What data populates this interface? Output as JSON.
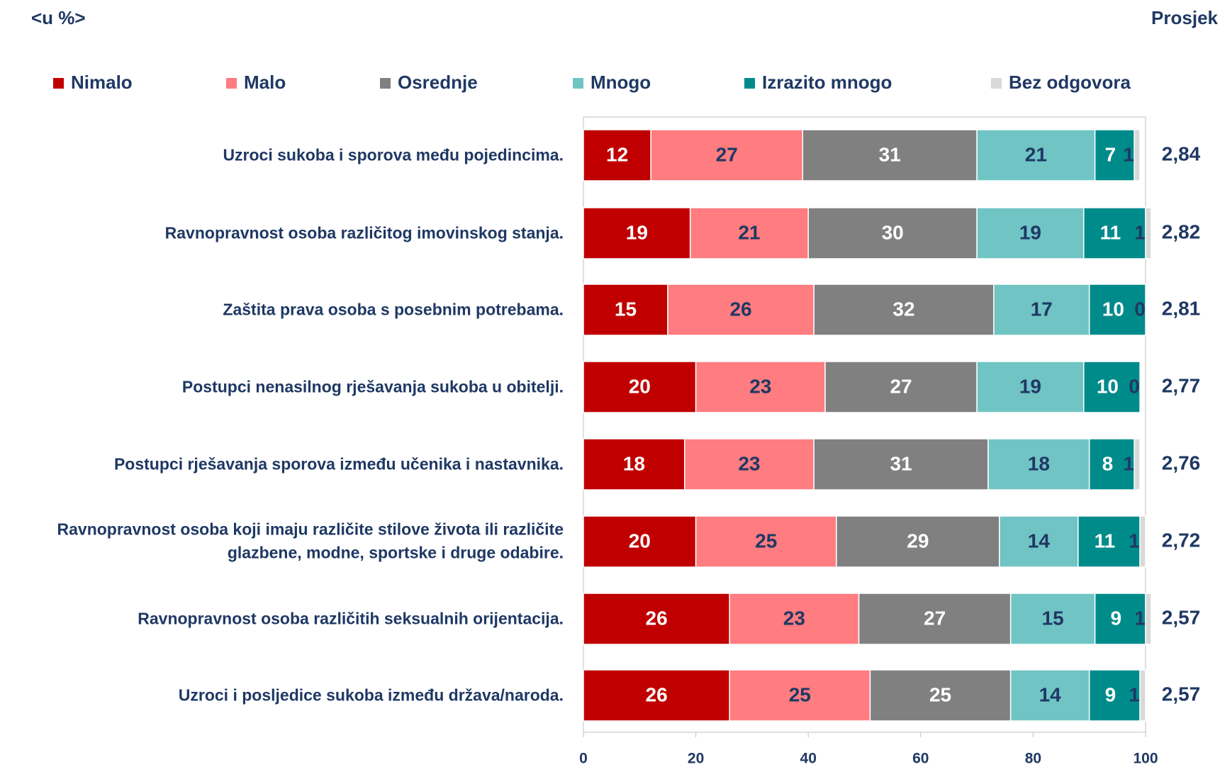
{
  "chart_data": {
    "type": "stacked_barh",
    "unit_label": "<u %>",
    "categories": [
      "Uzroci sukoba i sporova među pojedincima.",
      "Ravnopravnost osoba različitog imovinskog stanja.",
      "Zaštita prava osoba s posebnim potrebama.",
      "Postupci nenasilnog rješavanja sukoba u obitelji.",
      "Postupci rješavanja sporova između učenika i nastavnika.",
      "Ravnopravnost osoba koji imaju različite stilove života ili različite glazbene, modne, sportske i druge odabire.",
      "Ravnopravnost osoba različitih seksualnih orijentacija.",
      "Uzroci i posljedice sukoba između država/naroda."
    ],
    "series": [
      {
        "name": "Nimalo",
        "color": "#c00000",
        "label_color": "#ffffff",
        "values": [
          12,
          19,
          15,
          20,
          18,
          20,
          26,
          26
        ]
      },
      {
        "name": "Malo",
        "color": "#ff7c80",
        "label_color": "#1f3864",
        "values": [
          27,
          21,
          26,
          23,
          23,
          25,
          23,
          25
        ]
      },
      {
        "name": "Osrednje",
        "color": "#808080",
        "label_color": "#ffffff",
        "values": [
          31,
          30,
          32,
          27,
          31,
          29,
          27,
          25
        ]
      },
      {
        "name": "Mnogo",
        "color": "#70c4c4",
        "label_color": "#1f3864",
        "values": [
          21,
          19,
          17,
          19,
          18,
          14,
          15,
          14
        ]
      },
      {
        "name": "Izrazito mnogo",
        "color": "#008b8b",
        "label_color": "#ffffff",
        "values": [
          7,
          11,
          10,
          10,
          8,
          11,
          9,
          9
        ]
      },
      {
        "name": "Bez odgovora",
        "color": "#d9d9d9",
        "label_color": "#1f3864",
        "values": [
          1,
          1,
          0,
          0,
          1,
          1,
          1,
          1
        ]
      }
    ],
    "averages": {
      "title": "Prosjek",
      "values": [
        2.84,
        2.82,
        2.81,
        2.77,
        2.76,
        2.72,
        2.57,
        2.57
      ],
      "value_labels": [
        "2,84",
        "2,82",
        "2,81",
        "2,77",
        "2,76",
        "2,72",
        "2,57",
        "2,57"
      ]
    },
    "xlim": [
      0,
      100
    ],
    "xticks": [
      0,
      20,
      40,
      60,
      80,
      100
    ],
    "legend": "top"
  }
}
